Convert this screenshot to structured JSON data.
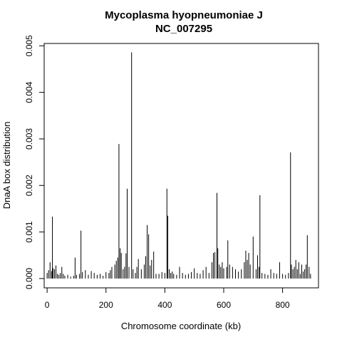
{
  "chart_data": {
    "type": "bar",
    "title": "Mycoplasma hyopneumoniae J",
    "subtitle": "NC_007295",
    "xlabel": "Chromosome coordinate (kb)",
    "ylabel": "DnaA box distribution",
    "xlim": [
      -10,
      922
    ],
    "ylim": [
      -0.0002,
      0.00505
    ],
    "x_ticks": [
      0,
      200,
      400,
      600,
      800
    ],
    "y_ticks": [
      0.0,
      0.001,
      0.002,
      0.003,
      0.004,
      0.005
    ],
    "x_tick_labels": [
      "0",
      "200",
      "400",
      "600",
      "800"
    ],
    "y_tick_labels": [
      "0.000",
      "0.001",
      "0.002",
      "0.003",
      "0.004",
      "0.005"
    ],
    "grid": false,
    "legend": "none",
    "x": [
      0,
      5,
      10,
      15,
      18,
      20,
      25,
      30,
      35,
      40,
      45,
      50,
      55,
      60,
      70,
      80,
      90,
      95,
      100,
      110,
      115,
      120,
      130,
      140,
      150,
      160,
      170,
      180,
      190,
      200,
      210,
      215,
      220,
      230,
      235,
      240,
      244,
      248,
      252,
      258,
      263,
      268,
      272,
      278,
      287,
      292,
      300,
      305,
      310,
      320,
      330,
      335,
      340,
      345,
      350,
      355,
      362,
      370,
      380,
      390,
      400,
      407,
      410,
      415,
      420,
      425,
      430,
      440,
      450,
      460,
      470,
      480,
      490,
      500,
      510,
      520,
      530,
      540,
      550,
      560,
      565,
      570,
      577,
      580,
      585,
      590,
      595,
      600,
      610,
      614,
      620,
      630,
      640,
      650,
      660,
      670,
      675,
      680,
      685,
      690,
      700,
      710,
      715,
      720,
      723,
      730,
      740,
      750,
      760,
      770,
      780,
      790,
      800,
      810,
      820,
      827,
      830,
      835,
      840,
      845,
      850,
      855,
      860,
      865,
      870,
      875,
      880,
      884,
      890,
      895
    ],
    "values": [
      0.00012,
      0.00018,
      0.00035,
      0.00016,
      0.00133,
      0.00022,
      0.0002,
      0.00028,
      0.0001,
      8e-05,
      0.00012,
      0.00025,
      0.0001,
      6e-05,
      8e-05,
      4e-05,
      6e-05,
      0.00045,
      8e-05,
      0.0001,
      0.00103,
      0.00014,
      0.00018,
      8e-05,
      0.00016,
      0.00012,
      8e-05,
      0.0001,
      6e-05,
      0.00014,
      0.00012,
      0.00018,
      0.00025,
      0.0003,
      0.00038,
      0.00045,
      0.00289,
      0.00065,
      0.00055,
      0.0002,
      0.00025,
      0.00054,
      0.00193,
      0.00025,
      0.00486,
      0.0002,
      0.00012,
      0.00025,
      0.00042,
      0.0002,
      0.0003,
      0.00048,
      0.00115,
      0.00095,
      0.00028,
      0.0004,
      0.00058,
      0.0001,
      0.0001,
      0.00014,
      0.00012,
      0.00193,
      0.00135,
      0.0002,
      0.00012,
      0.00015,
      0.0001,
      8e-05,
      0.00025,
      0.00012,
      8e-05,
      0.0001,
      0.00014,
      0.00022,
      0.00012,
      0.0001,
      0.00018,
      0.00025,
      0.00012,
      0.00035,
      0.00055,
      0.00057,
      0.00184,
      0.00065,
      0.0003,
      0.00025,
      0.00035,
      0.00022,
      0.00025,
      0.00082,
      0.0003,
      0.00025,
      0.0002,
      0.00015,
      0.0002,
      0.00035,
      0.0006,
      0.0004,
      0.00055,
      0.0003,
      0.0009,
      0.0002,
      0.0005,
      0.00025,
      0.00179,
      0.00012,
      0.0001,
      8e-05,
      0.0002,
      0.00012,
      0.0001,
      0.00035,
      0.0001,
      8e-05,
      0.00012,
      0.00271,
      0.0003,
      0.0002,
      0.00025,
      0.0004,
      0.0002,
      0.00035,
      0.0001,
      0.0003,
      0.00015,
      0.0002,
      0.0003,
      0.00093,
      0.00025,
      0.0001
    ]
  }
}
